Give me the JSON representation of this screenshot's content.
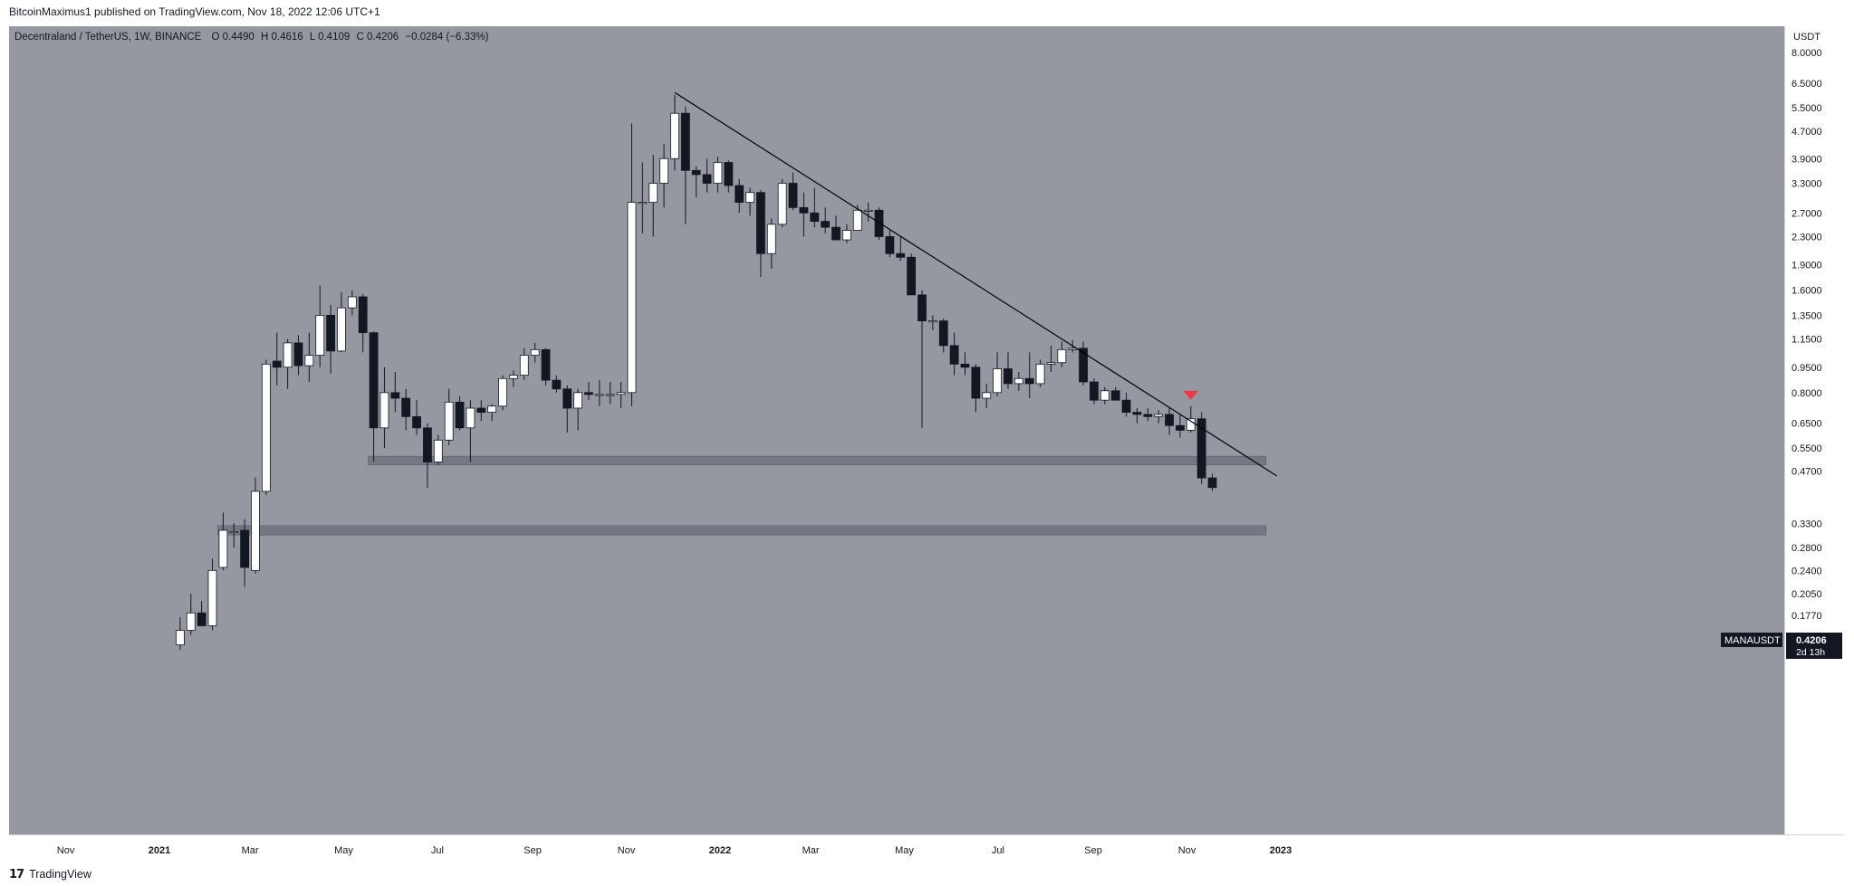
{
  "header": {
    "publish_line": "BitcoinMaximus1 published on TradingView.com, Nov 18, 2022 12:06 UTC+1"
  },
  "symbol_bar": {
    "name": "Decentraland / TetherUS, 1W, BINANCE",
    "o_label": "O",
    "o_value": "0.4490",
    "h_label": "H",
    "h_value": "0.4616",
    "l_label": "L",
    "l_value": "0.4109",
    "c_label": "C",
    "c_value": "0.4206",
    "change": "−0.0284 (−6.33%)"
  },
  "price_axis": {
    "currency": "USDT",
    "ticks": [
      "8.0000",
      "6.5000",
      "5.5000",
      "4.7000",
      "3.9000",
      "3.3000",
      "2.7000",
      "2.3000",
      "1.9000",
      "1.6000",
      "1.3500",
      "1.1500",
      "0.9500",
      "0.8000",
      "0.6500",
      "0.5500",
      "0.4700",
      "0.3300",
      "0.2800",
      "0.2400",
      "0.2050",
      "0.1770"
    ]
  },
  "last_price": {
    "symbol": "MANAUSDT",
    "price": "0.4206",
    "countdown": "2d 13h"
  },
  "footer": {
    "brand": "TradingView"
  },
  "colors": {
    "plot_background": "#9598a1",
    "bull_body": "#ffffff",
    "bear_body": "#131722",
    "trendline": "#000000",
    "zone": "#6a6d78",
    "marker": "#f23645"
  },
  "chart_data": {
    "type": "candlestick",
    "title": "Decentraland / TetherUS, 1W, BINANCE",
    "symbol": "MANAUSDT",
    "timeframe": "1W",
    "y_scale": "log",
    "y_unit": "USDT",
    "x_ticks": [
      "Nov",
      "2021",
      "Mar",
      "May",
      "Jul",
      "Sep",
      "Nov",
      "2022",
      "Mar",
      "May",
      "Jul",
      "Sep",
      "Nov",
      "2023"
    ],
    "candles": [
      {
        "date": "2021-01-11",
        "o": 0.145,
        "h": 0.175,
        "l": 0.14,
        "c": 0.16
      },
      {
        "date": "2021-01-18",
        "o": 0.16,
        "h": 0.205,
        "l": 0.155,
        "c": 0.18
      },
      {
        "date": "2021-01-25",
        "o": 0.18,
        "h": 0.195,
        "l": 0.165,
        "c": 0.165
      },
      {
        "date": "2021-02-01",
        "o": 0.165,
        "h": 0.26,
        "l": 0.16,
        "c": 0.24
      },
      {
        "date": "2021-02-08",
        "o": 0.245,
        "h": 0.355,
        "l": 0.24,
        "c": 0.315
      },
      {
        "date": "2021-02-15",
        "o": 0.31,
        "h": 0.33,
        "l": 0.28,
        "c": 0.312
      },
      {
        "date": "2021-02-22",
        "o": 0.315,
        "h": 0.34,
        "l": 0.215,
        "c": 0.245
      },
      {
        "date": "2021-03-01",
        "o": 0.24,
        "h": 0.45,
        "l": 0.235,
        "c": 0.41
      },
      {
        "date": "2021-03-08",
        "o": 0.41,
        "h": 1.0,
        "l": 0.4,
        "c": 0.97
      },
      {
        "date": "2021-03-15",
        "o": 0.99,
        "h": 1.2,
        "l": 0.84,
        "c": 0.95
      },
      {
        "date": "2021-03-22",
        "o": 0.95,
        "h": 1.15,
        "l": 0.82,
        "c": 1.12
      },
      {
        "date": "2021-03-29",
        "o": 1.12,
        "h": 1.18,
        "l": 0.9,
        "c": 0.96
      },
      {
        "date": "2021-04-05",
        "o": 0.96,
        "h": 1.2,
        "l": 0.86,
        "c": 1.03
      },
      {
        "date": "2021-04-12",
        "o": 1.03,
        "h": 1.65,
        "l": 0.95,
        "c": 1.35
      },
      {
        "date": "2021-04-19",
        "o": 1.35,
        "h": 1.45,
        "l": 0.91,
        "c": 1.06
      },
      {
        "date": "2021-04-26",
        "o": 1.06,
        "h": 1.58,
        "l": 1.05,
        "c": 1.42
      },
      {
        "date": "2021-05-03",
        "o": 1.42,
        "h": 1.6,
        "l": 1.35,
        "c": 1.53
      },
      {
        "date": "2021-05-10",
        "o": 1.53,
        "h": 1.56,
        "l": 1.05,
        "c": 1.2
      },
      {
        "date": "2021-05-17",
        "o": 1.2,
        "h": 1.21,
        "l": 0.5,
        "c": 0.63
      },
      {
        "date": "2021-05-24",
        "o": 0.63,
        "h": 0.95,
        "l": 0.55,
        "c": 0.8
      },
      {
        "date": "2021-05-31",
        "o": 0.8,
        "h": 0.92,
        "l": 0.7,
        "c": 0.77
      },
      {
        "date": "2021-06-07",
        "o": 0.77,
        "h": 0.82,
        "l": 0.62,
        "c": 0.68
      },
      {
        "date": "2021-06-14",
        "o": 0.68,
        "h": 0.76,
        "l": 0.6,
        "c": 0.63
      },
      {
        "date": "2021-06-21",
        "o": 0.63,
        "h": 0.65,
        "l": 0.42,
        "c": 0.5
      },
      {
        "date": "2021-06-28",
        "o": 0.5,
        "h": 0.6,
        "l": 0.49,
        "c": 0.58
      },
      {
        "date": "2021-07-05",
        "o": 0.58,
        "h": 0.82,
        "l": 0.56,
        "c": 0.75
      },
      {
        "date": "2021-07-12",
        "o": 0.75,
        "h": 0.78,
        "l": 0.62,
        "c": 0.63
      },
      {
        "date": "2021-07-19",
        "o": 0.63,
        "h": 0.76,
        "l": 0.5,
        "c": 0.72
      },
      {
        "date": "2021-07-26",
        "o": 0.72,
        "h": 0.76,
        "l": 0.66,
        "c": 0.7
      },
      {
        "date": "2021-08-02",
        "o": 0.7,
        "h": 0.74,
        "l": 0.66,
        "c": 0.73
      },
      {
        "date": "2021-08-09",
        "o": 0.73,
        "h": 0.9,
        "l": 0.71,
        "c": 0.88
      },
      {
        "date": "2021-08-16",
        "o": 0.88,
        "h": 0.93,
        "l": 0.83,
        "c": 0.9
      },
      {
        "date": "2021-08-23",
        "o": 0.9,
        "h": 1.08,
        "l": 0.87,
        "c": 1.03
      },
      {
        "date": "2021-08-30",
        "o": 1.03,
        "h": 1.12,
        "l": 0.98,
        "c": 1.07
      },
      {
        "date": "2021-09-06",
        "o": 1.07,
        "h": 1.08,
        "l": 0.84,
        "c": 0.87
      },
      {
        "date": "2021-09-13",
        "o": 0.87,
        "h": 0.9,
        "l": 0.8,
        "c": 0.82
      },
      {
        "date": "2021-09-20",
        "o": 0.82,
        "h": 0.84,
        "l": 0.61,
        "c": 0.72
      },
      {
        "date": "2021-09-27",
        "o": 0.72,
        "h": 0.82,
        "l": 0.62,
        "c": 0.8
      },
      {
        "date": "2021-10-04",
        "o": 0.8,
        "h": 0.86,
        "l": 0.76,
        "c": 0.79
      },
      {
        "date": "2021-10-11",
        "o": 0.79,
        "h": 0.87,
        "l": 0.73,
        "c": 0.79
      },
      {
        "date": "2021-10-18",
        "o": 0.79,
        "h": 0.86,
        "l": 0.74,
        "c": 0.79
      },
      {
        "date": "2021-10-25",
        "o": 0.79,
        "h": 0.86,
        "l": 0.72,
        "c": 0.8
      },
      {
        "date": "2021-11-01",
        "o": 0.8,
        "h": 4.95,
        "l": 0.73,
        "c": 2.9
      },
      {
        "date": "2021-11-08",
        "o": 2.9,
        "h": 3.8,
        "l": 2.35,
        "c": 2.9
      },
      {
        "date": "2021-11-15",
        "o": 2.9,
        "h": 4.0,
        "l": 2.3,
        "c": 3.3
      },
      {
        "date": "2021-11-22",
        "o": 3.3,
        "h": 4.3,
        "l": 2.8,
        "c": 3.9
      },
      {
        "date": "2021-11-29",
        "o": 3.9,
        "h": 6.0,
        "l": 3.6,
        "c": 5.3
      },
      {
        "date": "2021-12-06",
        "o": 5.3,
        "h": 5.55,
        "l": 2.5,
        "c": 3.6
      },
      {
        "date": "2021-12-13",
        "o": 3.6,
        "h": 3.7,
        "l": 3.0,
        "c": 3.5
      },
      {
        "date": "2021-12-20",
        "o": 3.5,
        "h": 3.9,
        "l": 3.1,
        "c": 3.3
      },
      {
        "date": "2021-12-27",
        "o": 3.3,
        "h": 3.95,
        "l": 3.1,
        "c": 3.8
      },
      {
        "date": "2022-01-03",
        "o": 3.8,
        "h": 3.85,
        "l": 3.1,
        "c": 3.25
      },
      {
        "date": "2022-01-10",
        "o": 3.25,
        "h": 3.4,
        "l": 2.7,
        "c": 2.9
      },
      {
        "date": "2022-01-17",
        "o": 2.9,
        "h": 3.2,
        "l": 2.65,
        "c": 3.1
      },
      {
        "date": "2022-01-24",
        "o": 3.1,
        "h": 3.15,
        "l": 1.75,
        "c": 2.05
      },
      {
        "date": "2022-01-31",
        "o": 2.05,
        "h": 2.6,
        "l": 1.85,
        "c": 2.5
      },
      {
        "date": "2022-02-07",
        "o": 2.5,
        "h": 3.4,
        "l": 2.45,
        "c": 3.3
      },
      {
        "date": "2022-02-14",
        "o": 3.3,
        "h": 3.55,
        "l": 2.75,
        "c": 2.8
      },
      {
        "date": "2022-02-21",
        "o": 2.8,
        "h": 3.1,
        "l": 2.3,
        "c": 2.7
      },
      {
        "date": "2022-02-28",
        "o": 2.7,
        "h": 3.2,
        "l": 2.45,
        "c": 2.55
      },
      {
        "date": "2022-03-07",
        "o": 2.55,
        "h": 2.8,
        "l": 2.35,
        "c": 2.45
      },
      {
        "date": "2022-03-14",
        "o": 2.45,
        "h": 2.65,
        "l": 2.25,
        "c": 2.25
      },
      {
        "date": "2022-03-21",
        "o": 2.25,
        "h": 2.5,
        "l": 2.2,
        "c": 2.4
      },
      {
        "date": "2022-03-28",
        "o": 2.4,
        "h": 2.85,
        "l": 2.4,
        "c": 2.75
      },
      {
        "date": "2022-04-04",
        "o": 2.75,
        "h": 2.9,
        "l": 2.55,
        "c": 2.75
      },
      {
        "date": "2022-04-11",
        "o": 2.75,
        "h": 2.8,
        "l": 2.25,
        "c": 2.3
      },
      {
        "date": "2022-04-18",
        "o": 2.3,
        "h": 2.4,
        "l": 2.0,
        "c": 2.05
      },
      {
        "date": "2022-04-25",
        "o": 2.05,
        "h": 2.3,
        "l": 1.95,
        "c": 2.0
      },
      {
        "date": "2022-05-02",
        "o": 2.0,
        "h": 2.05,
        "l": 1.55,
        "c": 1.55
      },
      {
        "date": "2022-05-09",
        "o": 1.55,
        "h": 1.6,
        "l": 0.63,
        "c": 1.3
      },
      {
        "date": "2022-05-16",
        "o": 1.3,
        "h": 1.35,
        "l": 1.22,
        "c": 1.3
      },
      {
        "date": "2022-05-23",
        "o": 1.3,
        "h": 1.32,
        "l": 1.05,
        "c": 1.1
      },
      {
        "date": "2022-05-30",
        "o": 1.1,
        "h": 1.2,
        "l": 0.9,
        "c": 0.97
      },
      {
        "date": "2022-06-06",
        "o": 0.97,
        "h": 1.05,
        "l": 0.9,
        "c": 0.95
      },
      {
        "date": "2022-06-13",
        "o": 0.95,
        "h": 0.97,
        "l": 0.7,
        "c": 0.77
      },
      {
        "date": "2022-06-20",
        "o": 0.77,
        "h": 0.85,
        "l": 0.72,
        "c": 0.8
      },
      {
        "date": "2022-06-27",
        "o": 0.8,
        "h": 1.05,
        "l": 0.78,
        "c": 0.94
      },
      {
        "date": "2022-07-04",
        "o": 0.94,
        "h": 1.05,
        "l": 0.82,
        "c": 0.85
      },
      {
        "date": "2022-07-11",
        "o": 0.85,
        "h": 0.92,
        "l": 0.81,
        "c": 0.88
      },
      {
        "date": "2022-07-18",
        "o": 0.88,
        "h": 1.05,
        "l": 0.77,
        "c": 0.85
      },
      {
        "date": "2022-07-25",
        "o": 0.85,
        "h": 1.0,
        "l": 0.83,
        "c": 0.97
      },
      {
        "date": "2022-08-01",
        "o": 0.97,
        "h": 1.1,
        "l": 0.92,
        "c": 0.98
      },
      {
        "date": "2022-08-08",
        "o": 0.98,
        "h": 1.13,
        "l": 0.95,
        "c": 1.07
      },
      {
        "date": "2022-08-15",
        "o": 1.07,
        "h": 1.14,
        "l": 1.05,
        "c": 1.08
      },
      {
        "date": "2022-08-22",
        "o": 1.08,
        "h": 1.13,
        "l": 0.84,
        "c": 0.86
      },
      {
        "date": "2022-08-29",
        "o": 0.86,
        "h": 0.88,
        "l": 0.74,
        "c": 0.76
      },
      {
        "date": "2022-09-05",
        "o": 0.76,
        "h": 0.83,
        "l": 0.74,
        "c": 0.81
      },
      {
        "date": "2022-09-12",
        "o": 0.81,
        "h": 0.83,
        "l": 0.76,
        "c": 0.76
      },
      {
        "date": "2022-09-19",
        "o": 0.76,
        "h": 0.8,
        "l": 0.68,
        "c": 0.7
      },
      {
        "date": "2022-09-26",
        "o": 0.7,
        "h": 0.72,
        "l": 0.65,
        "c": 0.69
      },
      {
        "date": "2022-10-03",
        "o": 0.69,
        "h": 0.72,
        "l": 0.66,
        "c": 0.68
      },
      {
        "date": "2022-10-10",
        "o": 0.68,
        "h": 0.71,
        "l": 0.65,
        "c": 0.69
      },
      {
        "date": "2022-10-17",
        "o": 0.69,
        "h": 0.72,
        "l": 0.6,
        "c": 0.64
      },
      {
        "date": "2022-10-24",
        "o": 0.64,
        "h": 0.69,
        "l": 0.59,
        "c": 0.62
      },
      {
        "date": "2022-10-31",
        "o": 0.62,
        "h": 0.73,
        "l": 0.61,
        "c": 0.67
      },
      {
        "date": "2022-11-07",
        "o": 0.67,
        "h": 0.7,
        "l": 0.43,
        "c": 0.449
      },
      {
        "date": "2022-11-14",
        "o": 0.449,
        "h": 0.4616,
        "l": 0.4109,
        "c": 0.4206
      }
    ],
    "support_zones": [
      {
        "low": 0.49,
        "high": 0.52,
        "from": "2021-05-17",
        "to": "2022-12-19"
      },
      {
        "low": 0.305,
        "high": 0.325,
        "from": "2021-02-08",
        "to": "2022-12-19"
      }
    ],
    "trendline": {
      "from": {
        "date": "2021-11-29",
        "price": 6.1
      },
      "to": {
        "date": "2022-12-26",
        "price": 0.455
      }
    },
    "markers": [
      {
        "date": "2022-10-31",
        "price": 0.78,
        "shape": "down-triangle",
        "color": "#f23645"
      }
    ]
  }
}
